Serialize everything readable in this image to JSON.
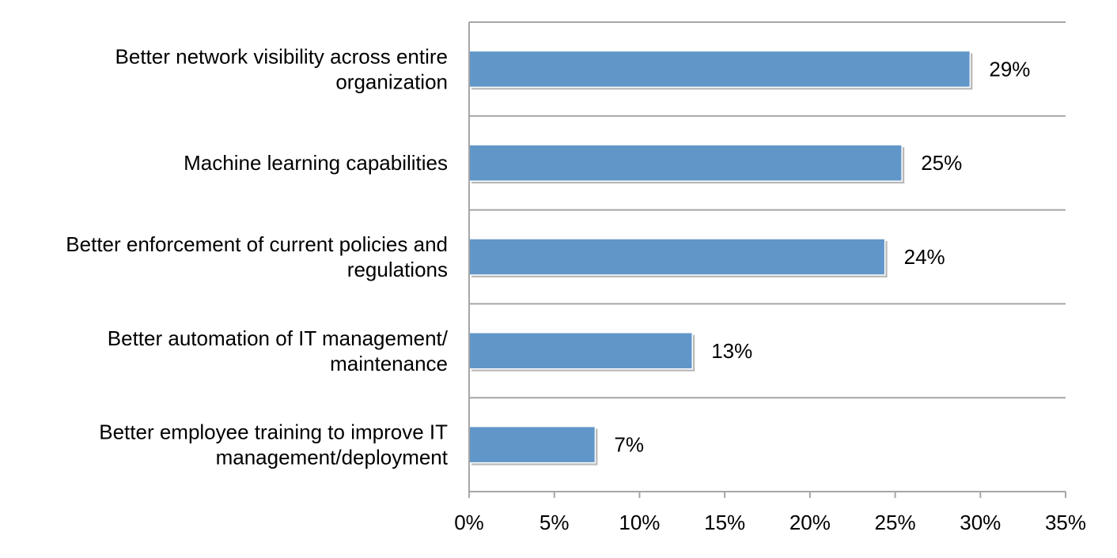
{
  "chart_data": {
    "type": "bar",
    "orientation": "horizontal",
    "categories": [
      [
        "Better network visibility across entire",
        "organization"
      ],
      [
        "Machine learning capabilities"
      ],
      [
        "Better enforcement of current policies and",
        "regulations"
      ],
      [
        "Better automation of IT management/",
        "maintenance"
      ],
      [
        "Better employee training to improve IT",
        "management/deployment"
      ]
    ],
    "values": [
      29.4,
      25.4,
      24.4,
      13.1,
      7.4
    ],
    "value_labels": [
      "29%",
      "25%",
      "24%",
      "13%",
      "7%"
    ],
    "xlim": [
      0,
      35
    ],
    "xticks": [
      0,
      5,
      10,
      15,
      20,
      25,
      30,
      35
    ],
    "xtick_labels": [
      "0%",
      "5%",
      "10%",
      "15%",
      "20%",
      "25%",
      "30%",
      "35%"
    ],
    "title": "",
    "xlabel": "",
    "ylabel": "",
    "grid": "horizontal category separators",
    "legend": "none",
    "colors": {
      "bar": "#6196C9",
      "bar_shadow": "#B9B9B9",
      "axis": "#A6A6A6"
    }
  }
}
